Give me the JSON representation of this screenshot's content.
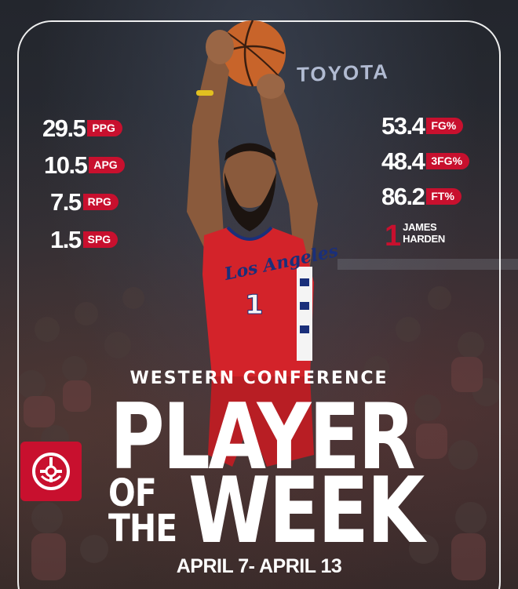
{
  "sponsor": {
    "text": "TOYOTA"
  },
  "stats_left": [
    {
      "value": "29.5",
      "unit": "PPG"
    },
    {
      "value": "10.5",
      "unit": "APG"
    },
    {
      "value": "7.5",
      "unit": "RPG"
    },
    {
      "value": "1.5",
      "unit": "SPG"
    }
  ],
  "stats_right": [
    {
      "value": "53.4",
      "unit": "FG%"
    },
    {
      "value": "48.4",
      "unit": "3FG%"
    },
    {
      "value": "86.2",
      "unit": "FT%"
    }
  ],
  "player": {
    "number": "1",
    "first_name": "JAMES",
    "last_name": "HARDEN",
    "jersey_script": "Los Angeles",
    "jersey_number": "1"
  },
  "headline": {
    "conference": "WESTERN CONFERENCE",
    "player": "PLAYER",
    "of": "OF",
    "the": "THE",
    "week": "WEEK",
    "dates": "APRIL 7- APRIL 13"
  },
  "colors": {
    "accent": "#c8102e",
    "text": "#ffffff",
    "jersey": "#d3232a"
  }
}
